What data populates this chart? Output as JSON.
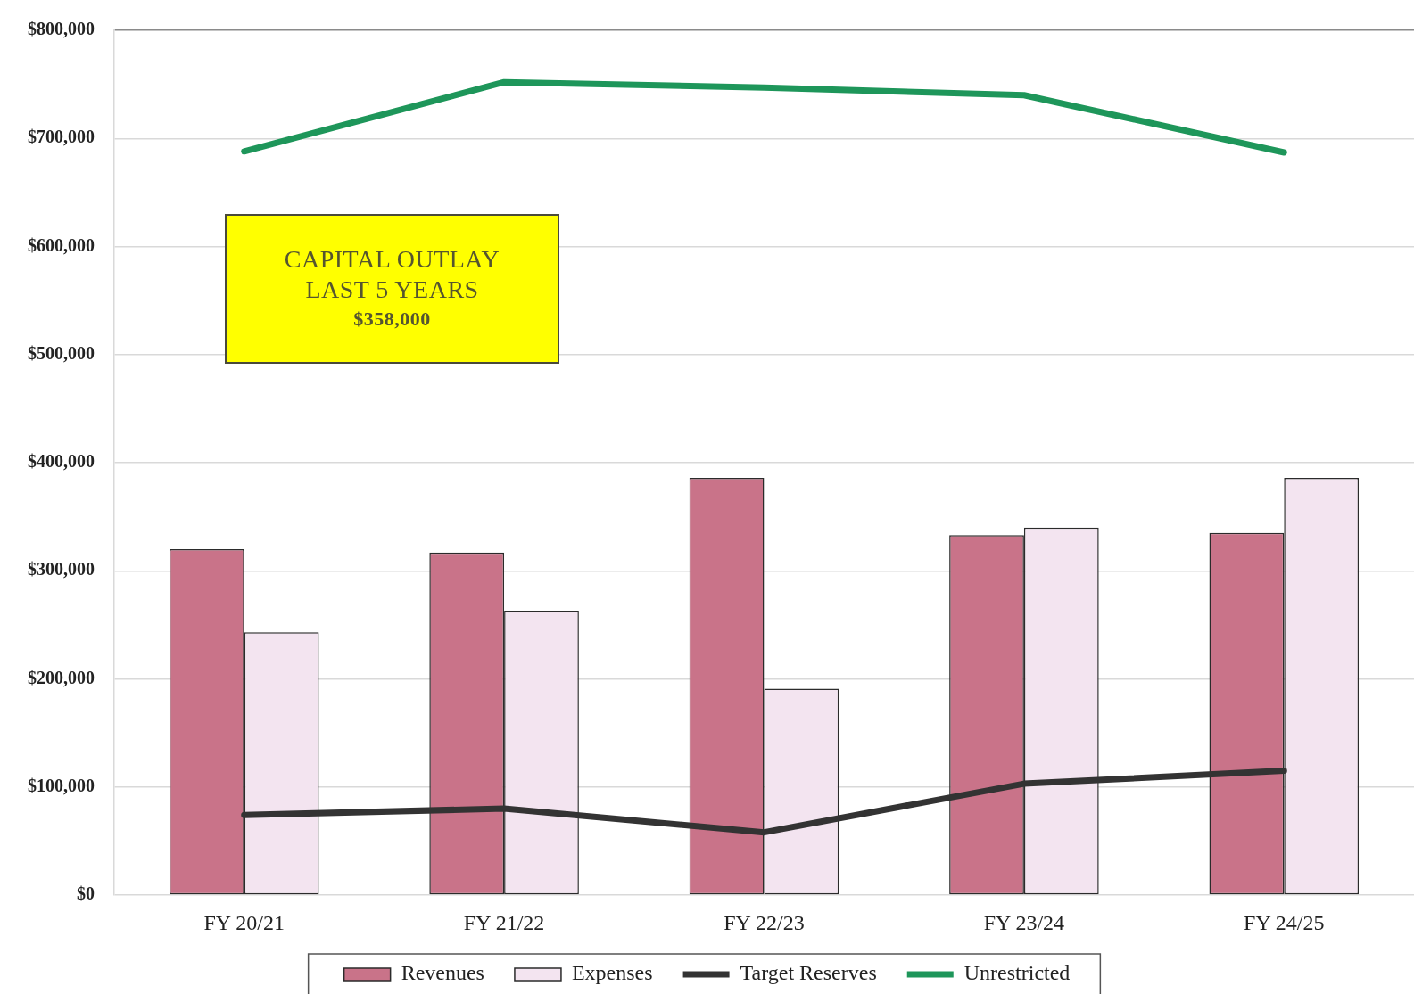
{
  "chart_data": {
    "type": "bar",
    "categories": [
      "FY 20/21",
      "FY 21/22",
      "FY 22/23",
      "FY 23/24",
      "FY 24/25"
    ],
    "series": [
      {
        "name": "Revenues",
        "type": "bar",
        "color": "#c97389",
        "values": [
          320000,
          317000,
          386000,
          333000,
          335000
        ]
      },
      {
        "name": "Expenses",
        "type": "bar",
        "color": "#f3e4f0",
        "values": [
          243000,
          263000,
          191000,
          340000,
          386000
        ]
      },
      {
        "name": "Target Reserves",
        "type": "line",
        "color": "#333333",
        "values": [
          74000,
          80000,
          58000,
          103000,
          115000
        ]
      },
      {
        "name": "Unrestricted",
        "type": "line",
        "color": "#1e965a",
        "values": [
          688000,
          752000,
          747000,
          740000,
          687000
        ]
      }
    ],
    "ylim": [
      0,
      800000
    ],
    "yticks": [
      {
        "value": 0,
        "label": "$0"
      },
      {
        "value": 100000,
        "label": "$100,000"
      },
      {
        "value": 200000,
        "label": "$200,000"
      },
      {
        "value": 300000,
        "label": "$300,000"
      },
      {
        "value": 400000,
        "label": "$400,000"
      },
      {
        "value": 500000,
        "label": "$500,000"
      },
      {
        "value": 600000,
        "label": "$600,000"
      },
      {
        "value": 700000,
        "label": "$700,000"
      },
      {
        "value": 800000,
        "label": "$800,000"
      }
    ],
    "grid": "y",
    "legend": "bottom",
    "annotations": [
      "CAPITAL OUTLAY\nLAST 5 YEARS\n$358,000"
    ]
  }
}
